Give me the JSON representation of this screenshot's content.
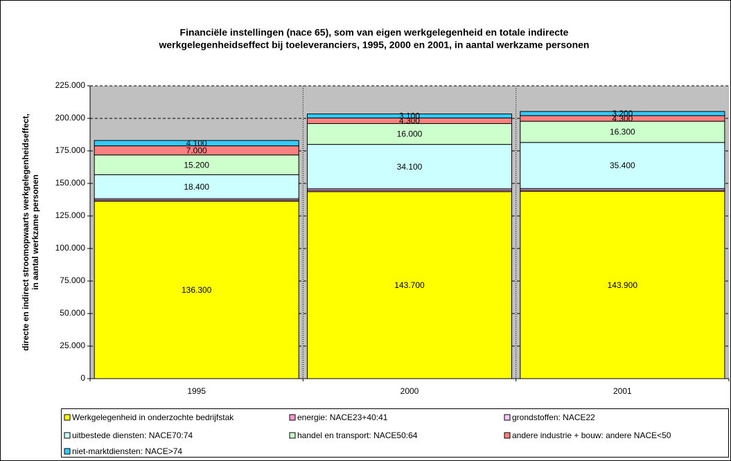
{
  "chart_data": {
    "type": "stacked_bar",
    "title_lines": [
      "Financiële instellingen (nace 65), som van eigen werkgelegenheid en totale indirecte",
      "werkgelegenheidseffect bij toeleveranciers, 1995, 2000 en 2001, in aantal werkzame personen"
    ],
    "y_label_lines": [
      "directe en indirect stroomopwaarts werkgelegenheidseffect,",
      "in aantal werkzame personen"
    ],
    "categories": [
      "1995",
      "2000",
      "2001"
    ],
    "ylim": [
      0,
      225000
    ],
    "yticks": [
      0,
      {
        "value": 25000,
        "label": "25.000"
      },
      {
        "value": 50000,
        "label": "50.000"
      },
      {
        "value": 75000,
        "label": "75.000"
      },
      {
        "value": 100000,
        "label": "100.000"
      },
      {
        "value": 125000,
        "label": "125.000"
      },
      {
        "value": 150000,
        "label": "150.000"
      },
      {
        "value": 175000,
        "label": "175.000"
      },
      {
        "value": 200000,
        "label": "200.000"
      },
      {
        "value": 225000,
        "label": "225.000"
      }
    ],
    "grid": true,
    "series": [
      {
        "name": "Werkgelegenheid in onderzochte bedrijfstak",
        "color": "#ffff00",
        "values": [
          136300,
          143700,
          143900
        ],
        "value_labels": [
          "136.300",
          "143.700",
          "143.900"
        ]
      },
      {
        "name": "energie: NACE23+40:41",
        "color": "#ff99cc",
        "values": [
          1000,
          1000,
          1000
        ]
      },
      {
        "name": "grondstoffen: NACE22",
        "color": "#ffccff",
        "values": [
          1000,
          1200,
          1200
        ]
      },
      {
        "name": "uitbestede diensten: NACE70:74",
        "color": "#ccffff",
        "values": [
          18400,
          34100,
          35400
        ],
        "value_labels": [
          "18.400",
          "34.100",
          "35.400"
        ]
      },
      {
        "name": "handel en transport: NACE50:64",
        "color": "#ccffcc",
        "values": [
          15200,
          16000,
          16300
        ],
        "value_labels": [
          "15.200",
          "16.000",
          "16.300"
        ]
      },
      {
        "name": "andere industrie + bouw: andere NACE<50",
        "color": "#ff8080",
        "values": [
          7000,
          4300,
          4300
        ],
        "value_labels": [
          "7.000",
          "4.300",
          "4.300"
        ]
      },
      {
        "name": "niet-marktdiensten: NACE>74",
        "color": "#33ccff",
        "values": [
          4100,
          3100,
          3200
        ],
        "value_labels": [
          "4.100",
          "3.100",
          "3.200"
        ]
      }
    ]
  }
}
